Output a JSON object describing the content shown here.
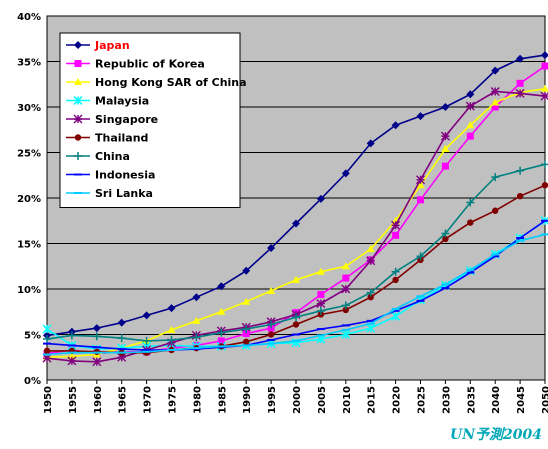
{
  "chart_data": {
    "type": "line",
    "title": "",
    "xlabel": "",
    "ylabel": "",
    "x": [
      1950,
      1955,
      1960,
      1965,
      1970,
      1975,
      1980,
      1985,
      1990,
      1995,
      2000,
      2005,
      2010,
      2015,
      2020,
      2025,
      2030,
      2035,
      2040,
      2045,
      2050
    ],
    "ylim": [
      0,
      40
    ],
    "yticks": [
      "0%",
      "5%",
      "10%",
      "15%",
      "20%",
      "25%",
      "30%",
      "35%",
      "40%"
    ],
    "grid": true,
    "legend_position": "top-left",
    "plot_background": "#c0c0c0",
    "series": [
      {
        "name": "Japan",
        "color": "#00008b",
        "marker": "diamond",
        "legend_text_color": "#ff0000",
        "values": [
          4.9,
          5.3,
          5.7,
          6.3,
          7.1,
          7.9,
          9.1,
          10.3,
          12.0,
          14.5,
          17.2,
          19.9,
          22.7,
          26.0,
          28.0,
          29.0,
          30.0,
          31.4,
          34.0,
          35.3,
          35.7
        ]
      },
      {
        "name": "Republic of Korea",
        "color": "#ff00ff",
        "marker": "square",
        "legend_text_color": "#000000",
        "values": [
          2.9,
          3.3,
          2.9,
          3.1,
          3.1,
          3.5,
          3.8,
          4.3,
          5.1,
          5.7,
          7.4,
          9.4,
          11.2,
          13.2,
          15.9,
          19.8,
          23.5,
          26.8,
          30.0,
          32.6,
          34.5
        ]
      },
      {
        "name": "Hong Kong SAR of China",
        "color": "#ffff00",
        "marker": "triangle",
        "legend_text_color": "#000000",
        "values": [
          2.5,
          2.6,
          2.8,
          3.5,
          4.3,
          5.5,
          6.5,
          7.5,
          8.6,
          9.8,
          11.0,
          11.9,
          12.5,
          14.4,
          17.5,
          21.4,
          25.4,
          28.0,
          30.5,
          31.6,
          32.0
        ]
      },
      {
        "name": "Malaysia",
        "color": "#00ffff",
        "marker": "star",
        "legend_text_color": "#000000",
        "values": [
          5.6,
          3.8,
          3.4,
          3.5,
          3.7,
          3.8,
          3.7,
          3.7,
          3.8,
          4.0,
          4.1,
          4.5,
          5.0,
          5.7,
          7.0,
          8.8,
          10.4,
          12.0,
          13.8,
          15.6,
          17.5
        ]
      },
      {
        "name": "Singapore",
        "color": "#800080",
        "marker": "asterisk",
        "legend_text_color": "#000000",
        "values": [
          2.4,
          2.1,
          2.0,
          2.5,
          3.3,
          4.1,
          4.9,
          5.4,
          5.8,
          6.4,
          7.2,
          8.4,
          10.0,
          13.1,
          17.0,
          22.0,
          26.8,
          30.1,
          31.7,
          31.5,
          31.2
        ]
      },
      {
        "name": "Thailand",
        "color": "#800000",
        "marker": "circle",
        "legend_text_color": "#000000",
        "values": [
          3.2,
          3.2,
          3.1,
          3.0,
          3.0,
          3.3,
          3.5,
          3.7,
          4.2,
          5.0,
          6.1,
          7.2,
          7.7,
          9.1,
          11.0,
          13.2,
          15.5,
          17.3,
          18.6,
          20.2,
          21.4
        ]
      },
      {
        "name": "China",
        "color": "#008080",
        "marker": "plus",
        "legend_text_color": "#000000",
        "values": [
          4.5,
          4.9,
          4.8,
          4.6,
          4.3,
          4.4,
          4.7,
          5.2,
          5.6,
          6.1,
          6.9,
          7.6,
          8.2,
          9.6,
          11.9,
          13.6,
          16.1,
          19.5,
          22.3,
          23.0,
          23.7
        ]
      },
      {
        "name": "Indonesia",
        "color": "#0000ff",
        "marker": "dash",
        "legend_text_color": "#000000",
        "values": [
          4.0,
          3.8,
          3.6,
          3.4,
          3.3,
          3.3,
          3.4,
          3.6,
          3.8,
          4.4,
          5.0,
          5.6,
          6.0,
          6.5,
          7.6,
          8.7,
          10.1,
          11.8,
          13.6,
          15.6,
          17.5
        ]
      },
      {
        "name": "Sri Lanka",
        "color": "#00ccff",
        "marker": "dash",
        "legend_text_color": "#000000",
        "values": [
          2.8,
          3.0,
          3.0,
          3.0,
          3.1,
          3.3,
          3.5,
          3.7,
          3.8,
          4.0,
          4.3,
          4.9,
          5.5,
          6.2,
          7.8,
          9.2,
          10.5,
          12.1,
          13.8,
          15.3,
          16.0
        ]
      }
    ]
  },
  "watermark_text": "UN予測2004"
}
